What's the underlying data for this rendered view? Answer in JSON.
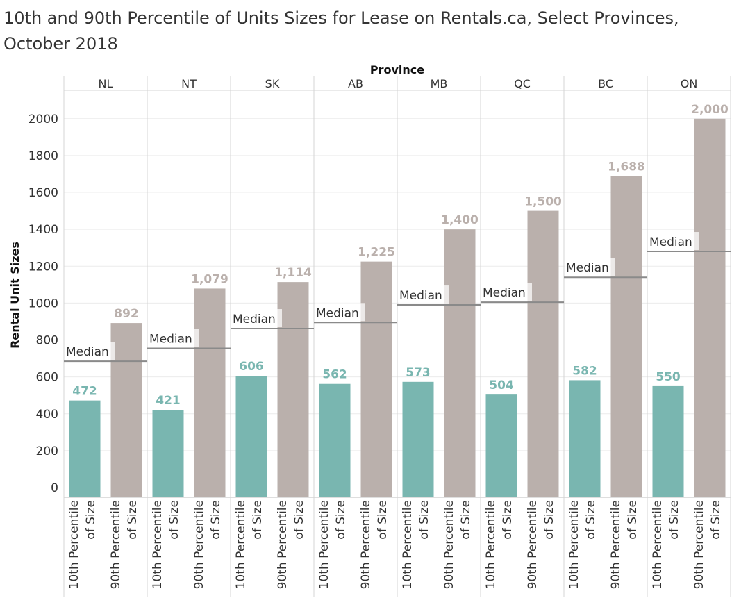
{
  "title": "10th and 90th Percentile of Units Sizes for Lease on Rentals.ca, Select Provinces, October 2018",
  "chart_data": {
    "type": "bar",
    "title": "10th and 90th Percentile of Units Sizes for Lease on Rentals.ca, Select Provinces, October 2018",
    "column_header": "Province",
    "ylabel": "Rental Unit Sizes",
    "ylim": [
      0,
      2200
    ],
    "yticks": [
      0,
      200,
      400,
      600,
      800,
      1000,
      1200,
      1400,
      1600,
      1800,
      2000
    ],
    "provinces": [
      "NL",
      "NT",
      "SK",
      "AB",
      "MB",
      "QC",
      "BC",
      "ON"
    ],
    "measures": [
      "10th Percentile of Size",
      "90th Percentile of Size"
    ],
    "measure_label_lines": [
      [
        "10th Percentile",
        "of Size"
      ],
      [
        "90th Percentile",
        "of Size"
      ]
    ],
    "series": [
      {
        "name": "10th Percentile of Size",
        "color": "#79b6b0",
        "values": [
          472,
          421,
          606,
          562,
          573,
          504,
          582,
          550
        ],
        "labels": [
          "472",
          "421",
          "606",
          "562",
          "573",
          "504",
          "582",
          "550"
        ]
      },
      {
        "name": "90th Percentile of Size",
        "color": "#bab0ac",
        "values": [
          892,
          1079,
          1114,
          1225,
          1400,
          1500,
          1688,
          2000
        ],
        "labels": [
          "892",
          "1,079",
          "1,114",
          "1,225",
          "1,400",
          "1,500",
          "1,688",
          "2,000"
        ]
      }
    ],
    "reference_line": {
      "label": "Median",
      "values": [
        685,
        755,
        862,
        895,
        990,
        1005,
        1140,
        1280
      ]
    },
    "grid": true,
    "legend": "none"
  }
}
